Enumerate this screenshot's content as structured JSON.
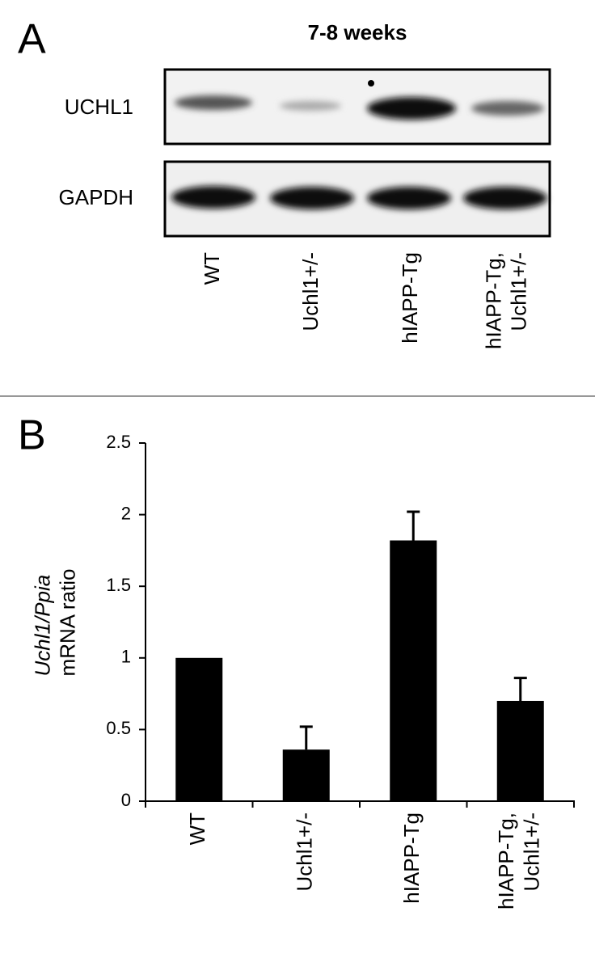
{
  "panel_a": {
    "label": "A",
    "title": "7-8 weeks",
    "rows": [
      "UCHL1",
      "GAPDH"
    ],
    "lanes": [
      "WT",
      "Uchl1+/-",
      "hIAPP-Tg",
      "hIAPP-Tg,\nUchl1+/-"
    ]
  },
  "chart_data": {
    "type": "bar",
    "panel_label": "B",
    "ylabel": [
      "Uchl1/Ppia",
      "mRNA ratio"
    ],
    "categories": [
      "WT",
      "Uchl1+/-",
      "hIAPP-Tg",
      "hIAPP-Tg,\nUchl1+/-"
    ],
    "values": [
      1.0,
      0.36,
      1.82,
      0.7
    ],
    "errors": [
      null,
      0.16,
      0.2,
      0.16
    ],
    "color": "#000000",
    "ylim": [
      0,
      2.5
    ],
    "yticks": [
      0,
      0.5,
      1,
      1.5,
      2,
      2.5
    ],
    "grid": false
  }
}
